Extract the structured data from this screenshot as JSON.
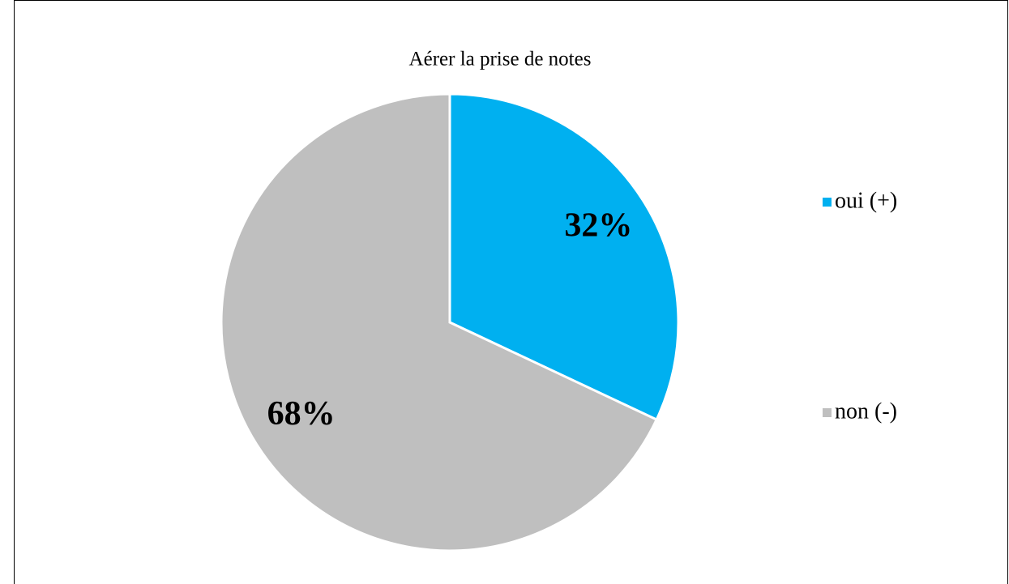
{
  "chart_data": {
    "type": "pie",
    "title": "Aérer la prise de notes",
    "categories": [
      "oui (+)",
      "non (-)"
    ],
    "values": [
      32,
      68
    ],
    "value_labels": [
      "32%",
      "68%"
    ],
    "colors": [
      "#00b0f0",
      "#bfbfbf"
    ],
    "legend": "right"
  }
}
